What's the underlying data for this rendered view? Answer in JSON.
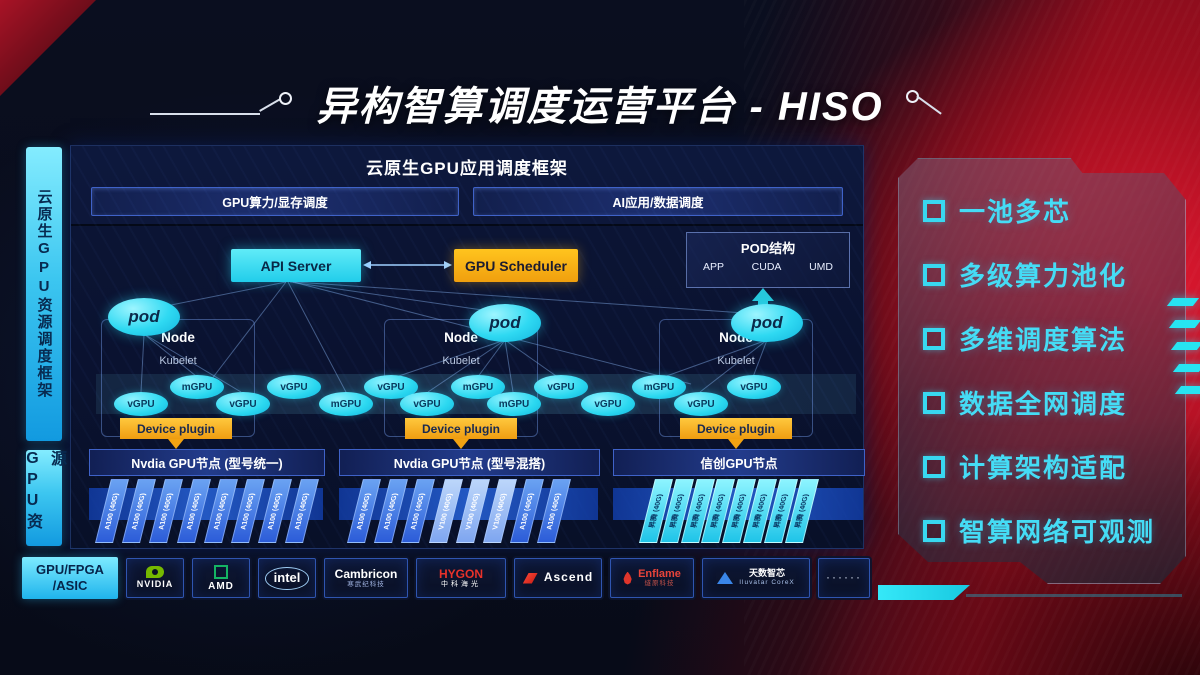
{
  "title": "异构智算调度运营平台 - HISO",
  "sidebar": {
    "scheduling_label": "云原生GPU资源调度框架",
    "resource_label": "GPU资源",
    "hardware_label_line1": "GPU/FPGA",
    "hardware_label_line2": "/ASIC"
  },
  "framework": {
    "title": "云原生GPU应用调度框架",
    "left_bar": "GPU算力/显存调度",
    "right_bar": "AI应用/数据调度"
  },
  "cluster": {
    "api_server": "API Server",
    "gpu_scheduler": "GPU Scheduler",
    "pod_struct": {
      "title": "POD结构",
      "items": [
        "APP",
        "CUDA",
        "UMD"
      ]
    },
    "pod_label": "pod",
    "node_label": "Node",
    "kubelet_label": "Kubelet",
    "device_plugin_label": "Device plugin",
    "gpu_ellipses": [
      "vGPU",
      "mGPU",
      "vGPU",
      "vGPU",
      "mGPU",
      "vGPU",
      "vGPU",
      "mGPU",
      "mGPU",
      "vGPU",
      "vGPU",
      "mGPU",
      "vGPU",
      "vGPU"
    ]
  },
  "gpu_groups": [
    {
      "title": "Nvdia GPU节点 (型号统一)",
      "cards": [
        "A100 (40G)",
        "A100 (40G)",
        "A100 (40G)",
        "A100 (40G)",
        "A100 (40G)",
        "A100 (40G)",
        "A100 (40G)",
        "A100 (40G)"
      ]
    },
    {
      "title": "Nvdia GPU节点 (型号混搭)",
      "cards": [
        "A100 (40G)",
        "A100 (40G)",
        "A100 (40G)",
        "V100 (40G)",
        "V100 (40G)",
        "V100 (40G)",
        "A100 (40G)",
        "A100 (40G)"
      ]
    },
    {
      "title": "信创GPU节点",
      "cards": [
        "昇腾 (40G)",
        "昇腾 (40G)",
        "昇腾 (40G)",
        "昇腾 (40G)",
        "昇腾 (40G)",
        "昇腾 (40G)",
        "昇腾 (40G)",
        "昇腾 (40G)"
      ]
    }
  ],
  "features": [
    "一池多芯",
    "多级算力池化",
    "多维调度算法",
    "数据全网调度",
    "计算架构适配",
    "智算网络可观测"
  ],
  "vendors": [
    {
      "id": "nvidia",
      "label": "NVIDIA"
    },
    {
      "id": "amd",
      "label": "AMD"
    },
    {
      "id": "intel",
      "label": "intel"
    },
    {
      "id": "cambricon",
      "label": "Cambricon",
      "sub": "寒武纪科技"
    },
    {
      "id": "hygon",
      "label": "HYGON",
      "sub": "中科海光"
    },
    {
      "id": "ascend",
      "label": "Ascend"
    },
    {
      "id": "enflame",
      "label": "Enflame",
      "sub": "燧原科技"
    },
    {
      "id": "iluvatar",
      "label": "天数智芯",
      "sub": "Iluvatar CoreX"
    },
    {
      "id": "more",
      "label": "······"
    }
  ],
  "colors": {
    "accent_cyan": "#35e0f5",
    "accent_orange": "#f6ae18",
    "accent_red": "#b01020",
    "card_blue": "#3b74e0",
    "panel_navy": "#0b1534"
  }
}
